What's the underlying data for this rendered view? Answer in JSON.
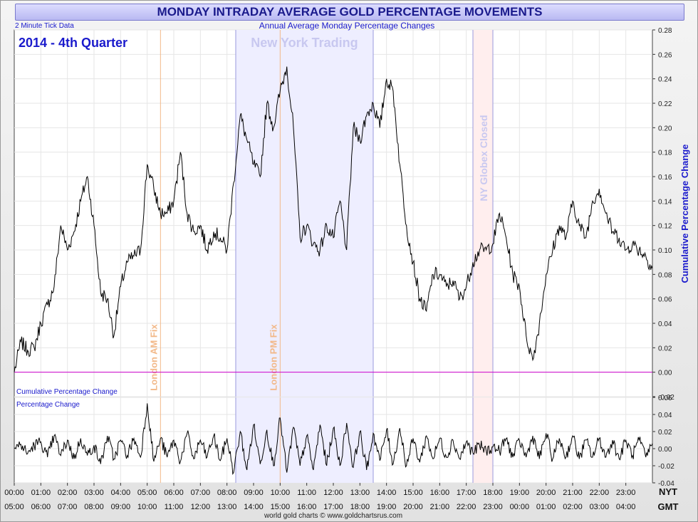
{
  "title": "MONDAY INTRADAY AVERAGE GOLD PERCENTAGE MOVEMENTS",
  "note_tick": "2 Minute Tick Data",
  "subtitle": "Annual Average Monday Percentage Changes",
  "period": "2014 - 4th Quarter",
  "footer": "world gold charts © www.goldchartsrus.com",
  "colors": {
    "line": "#000000",
    "zero": "#cc00cc",
    "ny_band": "#eeeeff",
    "ny_border": "#9999dd",
    "globex_band": "#ffeeee",
    "fix": "#f2b888",
    "label_blue": "#1a1acc"
  },
  "chart_data": [
    {
      "type": "line",
      "name": "upper",
      "ylabel": "Cumulative Percentage Change",
      "inner_label": "Cumulative Percentage Change",
      "ylim": [
        -0.02,
        0.28
      ],
      "yticks": [
        "-0.02",
        "0.00",
        "0.02",
        "0.04",
        "0.06",
        "0.08",
        "0.10",
        "0.12",
        "0.14",
        "0.16",
        "0.18",
        "0.20",
        "0.22",
        "0.24",
        "0.26",
        "0.28"
      ],
      "x_unit": "hours from 00:00 NYT",
      "xlim": [
        0,
        24
      ],
      "annotations": [
        {
          "kind": "band",
          "label": "New York Trading",
          "from": 8.33,
          "to": 13.5
        },
        {
          "kind": "band",
          "label": "NY Globex Closed",
          "from": 17.25,
          "to": 18.0
        },
        {
          "kind": "vline",
          "label": "London AM Fix",
          "at": 5.5
        },
        {
          "kind": "vline",
          "label": "London PM Fix",
          "at": 10.0
        }
      ],
      "x": [
        0,
        0.25,
        0.5,
        0.75,
        1,
        1.25,
        1.5,
        1.75,
        2,
        2.25,
        2.5,
        2.75,
        3,
        3.25,
        3.5,
        3.75,
        4,
        4.25,
        4.5,
        4.75,
        5,
        5.25,
        5.5,
        5.75,
        6,
        6.25,
        6.5,
        6.75,
        7,
        7.25,
        7.5,
        7.75,
        8,
        8.25,
        8.5,
        8.75,
        9,
        9.25,
        9.5,
        9.75,
        10,
        10.25,
        10.5,
        10.75,
        11,
        11.25,
        11.5,
        11.75,
        12,
        12.25,
        12.5,
        12.75,
        13,
        13.25,
        13.5,
        13.75,
        14,
        14.25,
        14.5,
        14.75,
        15,
        15.25,
        15.5,
        15.75,
        16,
        16.25,
        16.5,
        16.75,
        17,
        17.25,
        17.5,
        17.75,
        18,
        18.25,
        18.5,
        18.75,
        19,
        19.25,
        19.5,
        19.75,
        20,
        20.25,
        20.5,
        20.75,
        21,
        21.25,
        21.5,
        21.75,
        22,
        22.25,
        22.5,
        22.75,
        23,
        23.25,
        23.5,
        23.75,
        24
      ],
      "y": [
        0.0,
        0.025,
        0.018,
        0.02,
        0.04,
        0.055,
        0.07,
        0.12,
        0.1,
        0.115,
        0.14,
        0.16,
        0.12,
        0.065,
        0.06,
        0.03,
        0.07,
        0.09,
        0.095,
        0.1,
        0.17,
        0.15,
        0.13,
        0.13,
        0.14,
        0.18,
        0.13,
        0.115,
        0.12,
        0.1,
        0.115,
        0.11,
        0.1,
        0.155,
        0.21,
        0.19,
        0.17,
        0.16,
        0.22,
        0.2,
        0.23,
        0.25,
        0.2,
        0.11,
        0.12,
        0.105,
        0.1,
        0.12,
        0.11,
        0.14,
        0.1,
        0.2,
        0.19,
        0.21,
        0.22,
        0.2,
        0.24,
        0.23,
        0.17,
        0.12,
        0.09,
        0.06,
        0.05,
        0.08,
        0.08,
        0.07,
        0.075,
        0.06,
        0.07,
        0.09,
        0.1,
        0.1,
        0.105,
        0.13,
        0.11,
        0.08,
        0.07,
        0.03,
        0.01,
        0.04,
        0.08,
        0.1,
        0.12,
        0.11,
        0.14,
        0.12,
        0.11,
        0.14,
        0.15,
        0.13,
        0.115,
        0.11,
        0.1,
        0.105,
        0.1,
        0.095,
        0.085
      ]
    },
    {
      "type": "line",
      "name": "lower",
      "inner_label": "Percentage Change",
      "ylim": [
        -0.04,
        0.06
      ],
      "yticks": [
        "-0.04",
        "-0.02",
        "0.00",
        "0.02",
        "0.04",
        "0.06"
      ],
      "x_unit": "hours from 00:00 NYT",
      "xlim": [
        0,
        24
      ],
      "x": [
        0,
        0.25,
        0.5,
        0.75,
        1,
        1.25,
        1.5,
        1.75,
        2,
        2.25,
        2.5,
        2.75,
        3,
        3.25,
        3.5,
        3.75,
        4,
        4.25,
        4.5,
        4.75,
        5,
        5.25,
        5.5,
        5.75,
        6,
        6.25,
        6.5,
        6.75,
        7,
        7.25,
        7.5,
        7.75,
        8,
        8.25,
        8.5,
        8.75,
        9,
        9.25,
        9.5,
        9.75,
        10,
        10.25,
        10.5,
        10.75,
        11,
        11.25,
        11.5,
        11.75,
        12,
        12.25,
        12.5,
        12.75,
        13,
        13.25,
        13.5,
        13.75,
        14,
        14.25,
        14.5,
        14.75,
        15,
        15.25,
        15.5,
        15.75,
        16,
        16.25,
        16.5,
        16.75,
        17,
        17.25,
        17.5,
        17.75,
        18,
        18.25,
        18.5,
        18.75,
        19,
        19.25,
        19.5,
        19.75,
        20,
        20.25,
        20.5,
        20.75,
        21,
        21.25,
        21.5,
        21.75,
        22,
        22.25,
        22.5,
        22.75,
        23,
        23.25,
        23.5,
        23.75,
        24
      ],
      "y": [
        0.0,
        0.005,
        -0.006,
        0.004,
        0.008,
        -0.01,
        0.015,
        -0.008,
        0.01,
        -0.012,
        0.012,
        -0.008,
        0.004,
        -0.018,
        0.015,
        -0.012,
        0.01,
        -0.008,
        0.012,
        -0.01,
        0.053,
        -0.015,
        0.012,
        -0.01,
        0.01,
        -0.015,
        0.018,
        -0.012,
        0.01,
        -0.01,
        0.015,
        -0.014,
        0.012,
        -0.028,
        0.02,
        -0.025,
        0.028,
        -0.018,
        0.022,
        -0.02,
        0.036,
        -0.028,
        0.025,
        -0.02,
        0.015,
        -0.025,
        0.028,
        -0.02,
        0.024,
        -0.02,
        0.03,
        -0.022,
        0.02,
        -0.025,
        0.018,
        -0.014,
        0.022,
        -0.018,
        0.024,
        -0.02,
        0.012,
        -0.016,
        0.015,
        -0.012,
        0.012,
        -0.01,
        0.01,
        -0.012,
        0.008,
        -0.005,
        0.004,
        -0.003,
        0.002,
        -0.003,
        0.012,
        -0.01,
        0.01,
        -0.01,
        0.015,
        -0.012,
        0.018,
        -0.012,
        0.012,
        -0.01,
        0.015,
        -0.012,
        0.01,
        -0.01,
        0.012,
        -0.01,
        0.01,
        -0.012,
        0.01,
        -0.008,
        0.01,
        -0.01,
        0.006
      ]
    }
  ],
  "x_axis": {
    "nyt_label": "NYT",
    "gmt_label": "GMT",
    "nyt_ticks": [
      "00:00",
      "01:00",
      "02:00",
      "03:00",
      "04:00",
      "05:00",
      "06:00",
      "07:00",
      "08:00",
      "09:00",
      "10:00",
      "11:00",
      "12:00",
      "13:00",
      "14:00",
      "15:00",
      "16:00",
      "17:00",
      "18:00",
      "19:00",
      "20:00",
      "21:00",
      "22:00",
      "23:00"
    ],
    "gmt_ticks": [
      "05:00",
      "06:00",
      "07:00",
      "08:00",
      "09:00",
      "10:00",
      "11:00",
      "12:00",
      "13:00",
      "14:00",
      "15:00",
      "16:00",
      "17:00",
      "18:00",
      "19:00",
      "20:00",
      "21:00",
      "22:00",
      "23:00",
      "00:00",
      "01:00",
      "02:00",
      "03:00",
      "04:00"
    ]
  }
}
